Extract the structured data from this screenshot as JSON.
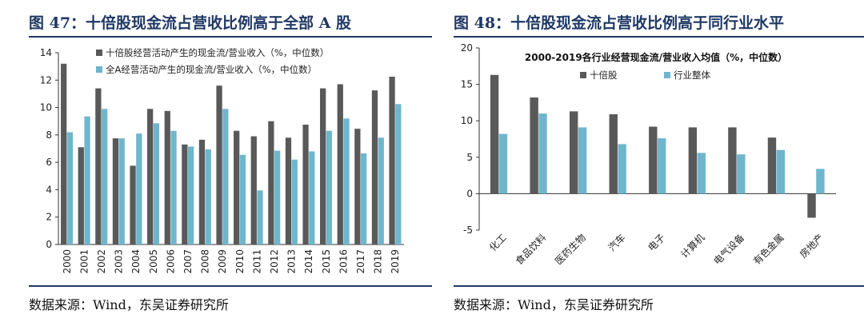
{
  "left": {
    "fig_title": "图 47：十倍股现金流占营收比例高于全部 A 股",
    "source": "数据来源：Wind，东吴证券研究所",
    "chart_data": {
      "type": "bar",
      "categories": [
        "2000",
        "2001",
        "2002",
        "2003",
        "2004",
        "2005",
        "2006",
        "2007",
        "2008",
        "2009",
        "2010",
        "2011",
        "2012",
        "2013",
        "2014",
        "2015",
        "2016",
        "2017",
        "2018",
        "2019"
      ],
      "series": [
        {
          "name": "十倍股经营活动产生的现金流/营业收入（%，中位数）",
          "color": "#595959",
          "values": [
            13.2,
            7.1,
            11.4,
            7.75,
            5.75,
            9.9,
            9.75,
            7.3,
            7.65,
            11.6,
            8.3,
            7.9,
            9.0,
            7.8,
            8.75,
            11.4,
            11.7,
            8.45,
            11.25,
            12.25
          ]
        },
        {
          "name": "全A经营活动产生的现金流/营业收入（%，中位数）",
          "color": "#6fb6cc",
          "values": [
            8.2,
            9.35,
            9.9,
            7.75,
            8.1,
            8.85,
            8.3,
            7.15,
            6.95,
            9.9,
            6.55,
            3.95,
            6.85,
            6.2,
            6.8,
            8.3,
            9.2,
            6.65,
            7.8,
            10.25
          ]
        }
      ],
      "ylim": [
        0,
        14
      ],
      "yticks": [
        0,
        2,
        4,
        6,
        8,
        10,
        12,
        14
      ],
      "legend": "top-left"
    }
  },
  "right": {
    "fig_title": "图 48：十倍股现金流占营收比例高于同行业水平",
    "source": "数据来源：Wind，东吴证券研究所",
    "chart_data": {
      "type": "bar",
      "title": "2000-2019各行业经营现金流/营业收入均值（%，中位数）",
      "categories": [
        "化工",
        "食品饮料",
        "医药生物",
        "汽车",
        "电子",
        "计算机",
        "电气设备",
        "有色金属",
        "房地产"
      ],
      "series": [
        {
          "name": "十倍股",
          "color": "#595959",
          "values": [
            16.3,
            13.2,
            11.3,
            10.9,
            9.2,
            9.1,
            9.1,
            7.7,
            -3.3
          ]
        },
        {
          "name": "行业整体",
          "color": "#6fb6cc",
          "values": [
            8.2,
            11.0,
            9.1,
            6.8,
            7.6,
            5.6,
            5.4,
            6.0,
            3.4
          ]
        }
      ],
      "ylim": [
        -5,
        20
      ],
      "yticks": [
        -5,
        0,
        5,
        10,
        15,
        20
      ],
      "legend": "top-center"
    }
  }
}
